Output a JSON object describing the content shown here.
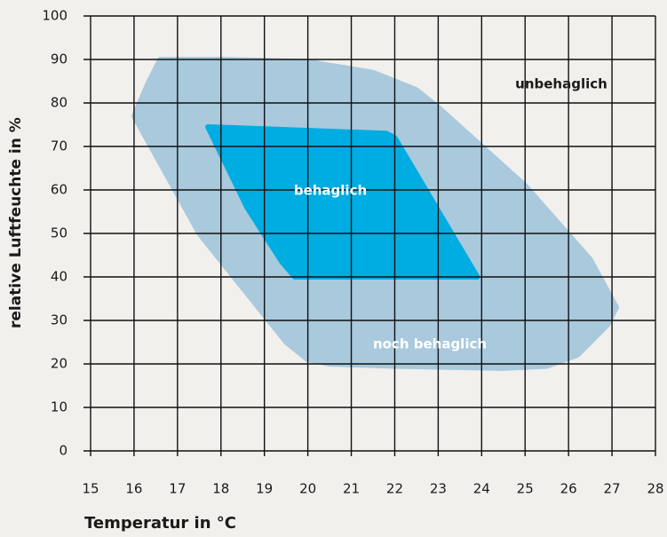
{
  "chart_data": {
    "type": "region",
    "xlabel": "Temperatur in °C",
    "ylabel": "relative Luftfeuchte in %",
    "xlim": [
      15,
      28
    ],
    "xticks": [
      15,
      16,
      17,
      18,
      19,
      20,
      21,
      22,
      23,
      24,
      25,
      26,
      27,
      28
    ],
    "ylim": [
      0,
      100
    ],
    "yticks": [
      0,
      10,
      20,
      30,
      40,
      50,
      60,
      70,
      80,
      90,
      100
    ],
    "grid": true,
    "annotations": [
      "unbehaglich"
    ],
    "regions": [
      {
        "name": "noch behaglich",
        "color": "#a9c9dd",
        "x": [
          16.6,
          18,
          20,
          21.5,
          22.5,
          23,
          25,
          26.5,
          27.1,
          26.9,
          26.2,
          25.5,
          24.5,
          22,
          20.5,
          20,
          19.5,
          17.5,
          16,
          16.3
        ],
        "y": [
          90,
          90,
          89.5,
          87,
          83,
          79,
          61,
          44,
          33,
          29,
          22,
          19.5,
          19,
          19.5,
          20,
          21,
          25,
          50,
          77,
          84
        ]
      },
      {
        "name": "behaglich",
        "color": "#00ade2",
        "x": [
          17.7,
          21.8,
          22,
          23.9,
          19.7,
          19.4,
          18.6
        ],
        "y": [
          74.5,
          73,
          72,
          40,
          40,
          43.5,
          56
        ]
      }
    ]
  }
}
